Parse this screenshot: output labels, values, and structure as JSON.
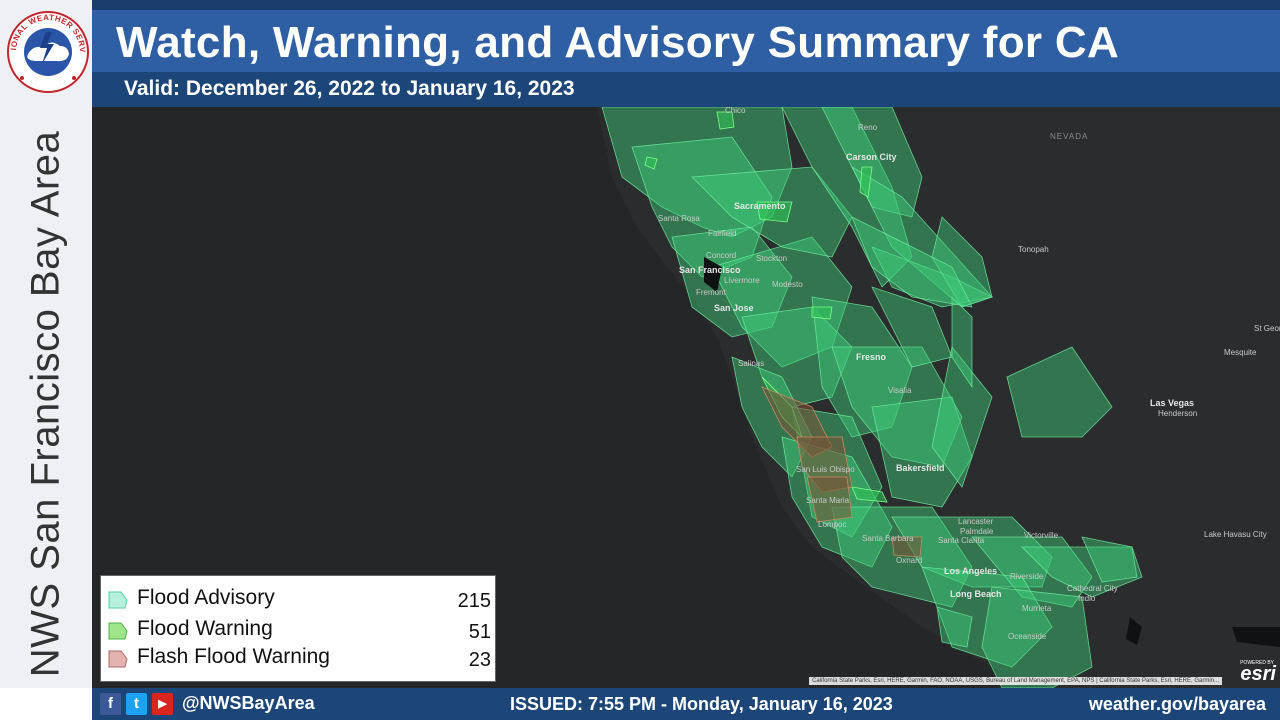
{
  "header": {
    "title": "Watch, Warning, and Advisory Summary for CA",
    "valid": "Valid: December 26, 2022 to January 16, 2023"
  },
  "sidebar": {
    "title": "NWS San Francisco Bay Area",
    "logo_text": "NATIONAL WEATHER SERVICE",
    "logo_icon": "nws-logo"
  },
  "legend": {
    "items": [
      {
        "label": "Flood Advisory",
        "count": "215",
        "color": "#b6f0dc"
      },
      {
        "label": "Flood Warning",
        "count": "51",
        "color": "#9fe58a"
      },
      {
        "label": "Flash Flood Warning",
        "count": "23",
        "color": "#e3b3b0"
      }
    ]
  },
  "map": {
    "state_label": "NEVADA",
    "cities": [
      "Chico",
      "Reno",
      "Carson City",
      "Santa Rosa",
      "Sacramento",
      "Fairfield",
      "Concord",
      "Stockton",
      "San Francisco",
      "Livermore",
      "Fremont",
      "Modesto",
      "San Jose",
      "Tonopah",
      "Fresno",
      "Salinas",
      "Visalia",
      "St George",
      "Mesquite",
      "Las Vegas",
      "Henderson",
      "Bakersfield",
      "San Luis Obispo",
      "Santa Maria",
      "Lancaster",
      "Palmdale",
      "Victorville",
      "Lompoc",
      "Santa Barbara",
      "Santa Clarita",
      "Lake Havasu City",
      "Oxnard",
      "Los Angeles",
      "Riverside",
      "Long Beach",
      "Cathedral City",
      "Indio",
      "Murrieta",
      "Oceanside"
    ],
    "attribution": "California State Parks, Esri, HERE, Garmin, FAO, NOAA, USGS, Bureau of Land Management, EPA, NPS | California State Parks, Esri, HERE, Garmin...",
    "powered_by": "POWERED BY",
    "esri": "esri",
    "colors": {
      "background": "#252627",
      "advisory_fill": "#3fcf7a",
      "advisory_stroke": "#58e08f",
      "warning_fill": "#2ea04a",
      "flash_fill": "#8a5a38"
    }
  },
  "footer": {
    "handle": "@NWSBayArea",
    "issued": "ISSUED: 7:55 PM - Monday, January 16, 2023",
    "website": "weather.gov/bayarea",
    "icons": {
      "facebook": "f",
      "twitter": "t",
      "youtube": "▶"
    }
  }
}
